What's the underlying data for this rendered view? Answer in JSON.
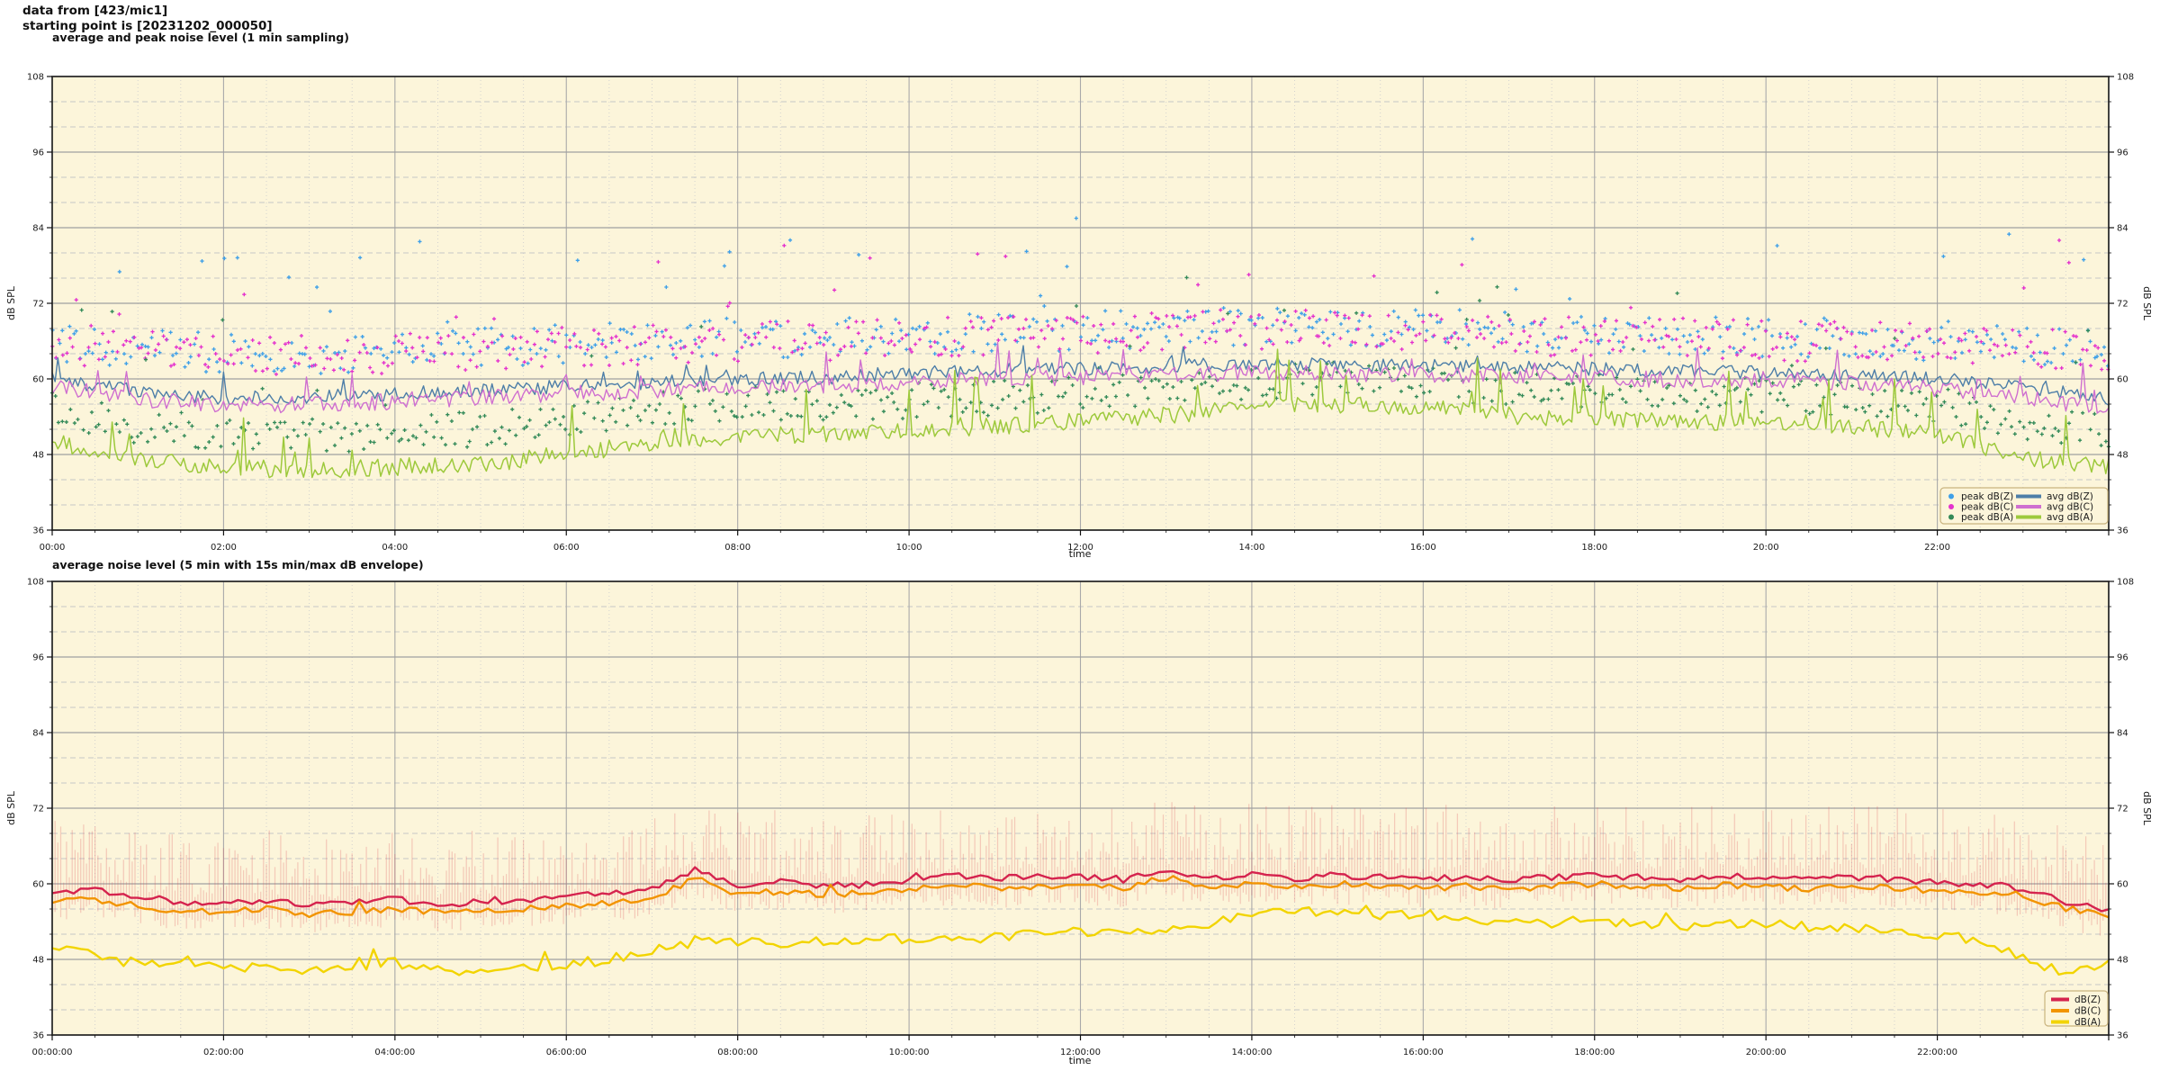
{
  "header": {
    "line1": "data from [423/mic1]",
    "line2": "starting point is [20231202_000050]"
  },
  "chart_data": [
    {
      "type": "line+scatter",
      "title": "average and peak noise level (1 min sampling)",
      "xlabel": "time",
      "ylabel": "dB SPL",
      "ylabel_right": "dB SPL",
      "ylim": [
        36,
        108
      ],
      "yticks": [
        36,
        48,
        60,
        72,
        84,
        96,
        108
      ],
      "y_minor_step": 4,
      "xlim_hours": [
        0,
        24
      ],
      "x_major_step_h": 2,
      "x_minor_step_h": 0.5,
      "xtick_labels": [
        "00:00",
        "02:00",
        "04:00",
        "06:00",
        "08:00",
        "10:00",
        "12:00",
        "14:00",
        "16:00",
        "18:00",
        "20:00",
        "22:00"
      ],
      "grid": true,
      "background": "#fcf5da",
      "legend_position": "lower right",
      "series": [
        {
          "name": "peak dB(Z)",
          "kind": "scatter",
          "color": "#3fa0e8",
          "anchor_step_h": 1,
          "sample_min": 2.5,
          "anchors": [
            66,
            65,
            64,
            64,
            64.5,
            65,
            65.5,
            66,
            66.5,
            66.5,
            67,
            67.5,
            67.5,
            68,
            68.5,
            68,
            68,
            67.5,
            67,
            67,
            66.5,
            66.5,
            66,
            65.5,
            64.5
          ],
          "noise": {
            "spread": 3.2,
            "tail_p": 0.05,
            "tail_max": 16
          }
        },
        {
          "name": "peak dB(C)",
          "kind": "scatter",
          "color": "#e431cd",
          "anchor_step_h": 1,
          "sample_min": 2.5,
          "anchors": [
            65.5,
            64.5,
            63.5,
            63.5,
            64,
            64.5,
            65,
            65.5,
            66,
            66,
            66.5,
            67,
            67,
            67.5,
            68,
            67.5,
            67.5,
            67,
            66.5,
            66.5,
            66,
            66,
            65.5,
            65,
            64
          ],
          "noise": {
            "spread": 3.2,
            "tail_p": 0.045,
            "tail_max": 14
          }
        },
        {
          "name": "peak dB(A)",
          "kind": "scatter",
          "color": "#338a58",
          "anchor_step_h": 1,
          "sample_min": 2.5,
          "anchors": [
            55,
            52.5,
            51.5,
            51,
            51.5,
            52,
            53.5,
            55,
            56,
            56,
            56.5,
            57,
            57.5,
            58.5,
            59.5,
            60,
            59.5,
            58.5,
            58,
            57.5,
            57.5,
            57,
            56,
            53,
            51.5
          ],
          "noise": {
            "spread": 2.8,
            "tail_p": 0.04,
            "tail_max": 14
          }
        },
        {
          "name": "avg dB(Z)",
          "kind": "line",
          "color": "#4d7ea8",
          "width": 1.4,
          "anchor_step_h": 1,
          "sample_min": 2,
          "anchors": [
            60.0,
            58.0,
            57.0,
            57.2,
            57.6,
            58.2,
            58.8,
            59.4,
            60.0,
            60.2,
            61.0,
            61.4,
            61.6,
            62.0,
            62.4,
            62.2,
            62.0,
            61.8,
            61.6,
            61.2,
            61.0,
            60.6,
            60.0,
            58.8,
            56.8
          ],
          "noise": {
            "jitter": 1.1,
            "spike_p": 0.03,
            "spike_max": 3.5
          }
        },
        {
          "name": "avg dB(C)",
          "kind": "line",
          "color": "#cf6fd0",
          "width": 1.4,
          "anchor_step_h": 1,
          "sample_min": 2,
          "anchors": [
            58.8,
            56.8,
            55.8,
            56.0,
            56.4,
            57.0,
            57.6,
            58.2,
            58.6,
            58.8,
            59.6,
            60.0,
            60.2,
            60.6,
            61.0,
            60.8,
            60.6,
            60.4,
            60.2,
            59.8,
            59.6,
            59.2,
            58.4,
            57.2,
            55.2
          ],
          "noise": {
            "jitter": 1.3,
            "spike_p": 0.05,
            "spike_max": 5.5
          }
        },
        {
          "name": "avg dB(A)",
          "kind": "line",
          "color": "#9dc93c",
          "width": 1.5,
          "anchor_step_h": 1,
          "sample_min": 2,
          "anchors": [
            50.0,
            47.0,
            46.0,
            45.5,
            46.0,
            46.5,
            48.0,
            50.0,
            51.0,
            51.2,
            52.0,
            52.5,
            53.2,
            54.2,
            55.5,
            56.0,
            55.5,
            54.2,
            53.6,
            53.2,
            53.2,
            52.6,
            51.0,
            47.5,
            46.0
          ],
          "noise": {
            "jitter": 1.4,
            "spike_p": 0.05,
            "spike_max": 9
          }
        }
      ],
      "legend": {
        "columns": [
          [
            {
              "label": "peak dB(Z)",
              "marker": "dot",
              "color": "#3fa0e8"
            },
            {
              "label": "peak dB(C)",
              "marker": "dot",
              "color": "#e431cd"
            },
            {
              "label": "peak dB(A)",
              "marker": "dot",
              "color": "#338a58"
            }
          ],
          [
            {
              "label": "avg dB(Z)",
              "marker": "line",
              "color": "#4d7ea8"
            },
            {
              "label": "avg dB(C)",
              "marker": "line",
              "color": "#cf6fd0"
            },
            {
              "label": "avg dB(A)",
              "marker": "line",
              "color": "#9dc93c"
            }
          ]
        ]
      }
    },
    {
      "type": "line",
      "title": "average noise level (5 min with 15s min/max dB envelope)",
      "xlabel": "time",
      "ylabel": "dB SPL",
      "ylabel_right": "dB SPL",
      "ylim": [
        36,
        108
      ],
      "yticks": [
        36,
        48,
        60,
        72,
        84,
        96,
        108
      ],
      "y_minor_step": 4,
      "xlim_hours": [
        0,
        24
      ],
      "x_major_step_h": 2,
      "x_minor_step_h": 0.5,
      "xtick_labels": [
        "00:00:00",
        "02:00:00",
        "04:00:00",
        "06:00:00",
        "08:00:00",
        "10:00:00",
        "12:00:00",
        "14:00:00",
        "16:00:00",
        "18:00:00",
        "20:00:00",
        "22:00:00"
      ],
      "grid": true,
      "background": "#fcf5da",
      "legend_position": "lower right",
      "series": [
        {
          "name": "dB(Z)",
          "kind": "line",
          "color": "#d5234e",
          "width": 2.4,
          "anchor_step_h": 0.5,
          "sample_min": 5,
          "anchors": [
            58.6,
            58.9,
            57.9,
            57.1,
            56.9,
            57.4,
            56.6,
            56.9,
            57.5,
            56.8,
            57.1,
            57.5,
            57.9,
            58.4,
            59.0,
            62.3,
            59.8,
            60.2,
            59.7,
            59.9,
            60.7,
            61.2,
            60.8,
            61.0,
            61.2,
            60.7,
            62.4,
            61.0,
            61.3,
            60.9,
            61.4,
            61.1,
            60.7,
            61.0,
            60.6,
            61.0,
            61.4,
            61.0,
            60.7,
            61.2,
            60.9,
            60.6,
            61.1,
            60.7,
            60.3,
            60.0,
            59.3,
            57.2,
            55.8
          ],
          "noise": {
            "jitter": 0.55,
            "spike_p": 0.02,
            "spike_max": 1.6
          },
          "envelope": {
            "color": "rgba(222,80,90,0.26)",
            "up": 10.5,
            "down": 3.4,
            "sample_min": 2
          }
        },
        {
          "name": "dB(C)",
          "kind": "line",
          "color": "#f29400",
          "width": 2.4,
          "anchor_step_h": 0.5,
          "sample_min": 5,
          "anchors": [
            57.2,
            57.5,
            56.5,
            55.7,
            55.5,
            56.0,
            55.2,
            55.5,
            56.1,
            55.4,
            55.7,
            56.1,
            56.5,
            57.0,
            57.6,
            60.9,
            58.4,
            58.8,
            58.3,
            58.5,
            59.3,
            59.8,
            59.4,
            59.6,
            59.8,
            59.3,
            61.0,
            59.6,
            59.9,
            59.5,
            60.0,
            59.7,
            59.3,
            59.6,
            59.2,
            59.6,
            60.0,
            59.6,
            59.3,
            59.8,
            59.5,
            59.2,
            59.7,
            59.3,
            58.9,
            58.6,
            58.0,
            56.1,
            55.0
          ],
          "noise": {
            "jitter": 0.5,
            "spike_p": 0.02,
            "spike_max": 1.4
          }
        },
        {
          "name": "dB(A)",
          "kind": "line",
          "color": "#f2d400",
          "width": 2.4,
          "anchor_step_h": 0.5,
          "sample_min": 5,
          "anchors": [
            50.2,
            48.5,
            47.3,
            48.0,
            46.8,
            46.5,
            46.2,
            46.8,
            47.5,
            46.4,
            46.2,
            46.6,
            47.2,
            48.0,
            49.5,
            50.5,
            51.0,
            50.6,
            50.8,
            51.0,
            51.4,
            51.0,
            51.6,
            52.0,
            52.4,
            52.0,
            53.0,
            53.8,
            55.2,
            55.6,
            55.3,
            55.0,
            55.2,
            54.6,
            54.0,
            53.8,
            54.2,
            53.6,
            53.2,
            53.6,
            53.8,
            53.2,
            53.0,
            52.6,
            52.0,
            51.0,
            48.0,
            45.8,
            47.5
          ],
          "noise": {
            "jitter": 0.8,
            "spike_p": 0.03,
            "spike_max": 2.0
          }
        }
      ],
      "legend": {
        "columns": [
          [
            {
              "label": "dB(Z)",
              "marker": "line",
              "color": "#d5234e"
            },
            {
              "label": "dB(C)",
              "marker": "line",
              "color": "#f29400"
            },
            {
              "label": "dB(A)",
              "marker": "line",
              "color": "#f2d400"
            }
          ]
        ]
      }
    }
  ],
  "style_colors": {
    "plot_background": "#fcf5da",
    "grid_major": "#a0a0a0",
    "grid_minor": "#c6c6c6",
    "spine": "#222222",
    "envelope_pink": "rgba(222,80,90,0.26)"
  }
}
